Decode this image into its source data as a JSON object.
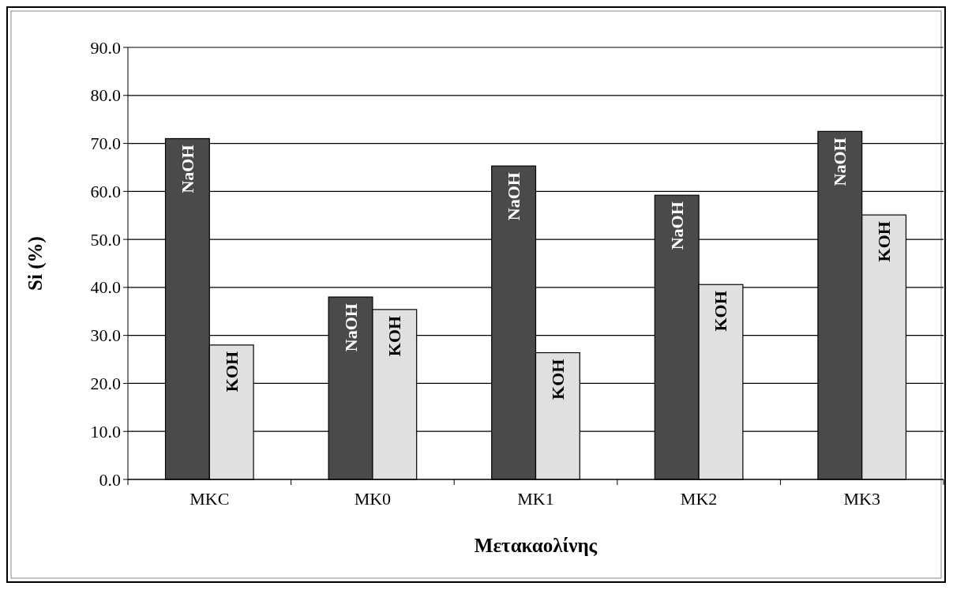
{
  "chart_data": {
    "type": "bar",
    "xlabel": "Μετακαολίνης",
    "ylabel": "Si (%)",
    "categories": [
      "MKC",
      "MK0",
      "MK1",
      "MK2",
      "MK3"
    ],
    "series": [
      {
        "name": "NaOH",
        "color": "#4a4a4a",
        "values": [
          71.0,
          38.0,
          65.3,
          59.2,
          72.5
        ]
      },
      {
        "name": "KOH",
        "color": "#e0e0e0",
        "values": [
          28.0,
          35.4,
          26.4,
          40.6,
          55.1
        ]
      }
    ],
    "ylim": [
      0,
      90
    ],
    "yticks": [
      {
        "value": 0,
        "label": "0.0"
      },
      {
        "value": 10,
        "label": "10.0"
      },
      {
        "value": 20,
        "label": "20.0"
      },
      {
        "value": 30,
        "label": "30.0"
      },
      {
        "value": 40,
        "label": "40.0"
      },
      {
        "value": 50,
        "label": "50.0"
      },
      {
        "value": 60,
        "label": "60.0"
      },
      {
        "value": 70,
        "label": "70.0"
      },
      {
        "value": 80,
        "label": "80.0"
      },
      {
        "value": 90,
        "label": "90.0"
      }
    ],
    "grid": "y"
  }
}
